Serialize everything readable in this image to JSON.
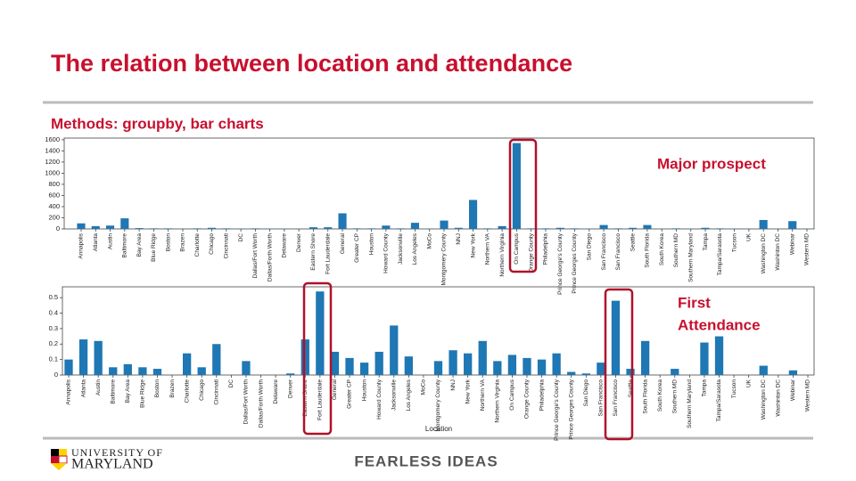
{
  "title": "The relation between location and attendance",
  "subtitle": "Methods: groupby, bar charts",
  "chart_data": [
    {
      "type": "bar",
      "color": "#1f77b4",
      "categories": [
        "Annapolis",
        "Atlanta",
        "Austin",
        "Baltimore",
        "Bay Area",
        "Blue Ridge",
        "Boston",
        "Brazen",
        "Charlotte",
        "Chicago",
        "Cincinnati",
        "DC",
        "Dallas/Fort Worth",
        "Dallas/Forth Worth",
        "Delaware",
        "Denver",
        "Eastern Shore",
        "Fort Lauderdale",
        "General",
        "Greater CP",
        "Houston",
        "Howard County",
        "Jacksonville",
        "Los Angeles",
        "MoCo",
        "Montgomery County",
        "NNJ",
        "New York",
        "Northern VA",
        "Northern Virginia",
        "On Campus",
        "Orange County",
        "Philadelphia",
        "Prince George's County",
        "Prince Georges County",
        "San Diego",
        "San Francisco",
        "San Francisco",
        "Seattle",
        "South Florida",
        "South Korea",
        "Southern MD",
        "Southern Maryland",
        "Tampa",
        "Tampa/Sarasota",
        "Tucson",
        "UK",
        "Washington DC",
        "Washinton DC",
        "Webinar",
        "Western MD"
      ],
      "values": [
        100,
        50,
        60,
        190,
        15,
        10,
        10,
        5,
        10,
        20,
        10,
        5,
        10,
        5,
        5,
        5,
        30,
        30,
        280,
        10,
        10,
        60,
        10,
        110,
        5,
        150,
        20,
        520,
        10,
        50,
        1540,
        10,
        10,
        20,
        10,
        5,
        70,
        10,
        20,
        70,
        5,
        10,
        5,
        20,
        10,
        5,
        5,
        160,
        5,
        140,
        5
      ],
      "ylim": [
        0,
        1630
      ],
      "yticks": [
        0,
        200,
        400,
        600,
        800,
        1000,
        1200,
        1400,
        1600
      ],
      "annotation": "Major prospect"
    },
    {
      "type": "bar",
      "color": "#1f77b4",
      "categories": [
        "Annapolis",
        "Atlanta",
        "Austin",
        "Baltimore",
        "Bay Area",
        "Blue Ridge",
        "Boston",
        "Brazen",
        "Charlotte",
        "Chicago",
        "Cincinnati",
        "DC",
        "Dallas/Fort Worth",
        "Dallas/Forth Worth",
        "Delaware",
        "Denver",
        "Eastern Shore",
        "Fort Lauderdale",
        "General",
        "Greater CP",
        "Houston",
        "Howard County",
        "Jacksonville",
        "Los Angeles",
        "MoCo",
        "Montgomery County",
        "NNJ",
        "New York",
        "Northern VA",
        "Northern Virginia",
        "On Campus",
        "Orange County",
        "Philadelphia",
        "Prince George's County",
        "Prince Georges County",
        "San Diego",
        "San Francisco",
        "San Francisco",
        "Seattle",
        "South Florida",
        "South Korea",
        "Southern MD",
        "Southern Maryland",
        "Tampa",
        "Tampa/Sarasota",
        "Tucson",
        "UK",
        "Washington DC",
        "Washinton DC",
        "Webinar",
        "Western MD"
      ],
      "values": [
        0.1,
        0.23,
        0.22,
        0.05,
        0.07,
        0.05,
        0.04,
        0,
        0.14,
        0.05,
        0.2,
        0,
        0.09,
        0,
        0,
        0.01,
        0.23,
        0.54,
        0.15,
        0.11,
        0.08,
        0.15,
        0.32,
        0.12,
        0,
        0.09,
        0.16,
        0.14,
        0.22,
        0.09,
        0.13,
        0.11,
        0.1,
        0.14,
        0.02,
        0.01,
        0.08,
        0.48,
        0.04,
        0.22,
        0,
        0.04,
        0,
        0.21,
        0.25,
        0,
        0,
        0.06,
        0,
        0.03,
        0
      ],
      "ylim": [
        0,
        0.57
      ],
      "yticks": [
        0.0,
        0.1,
        0.2,
        0.3,
        0.4,
        0.5
      ],
      "x_label": "Location",
      "annotation_lines": [
        "First",
        "Attendance"
      ]
    }
  ],
  "footer": {
    "logo_top": "UNIVERSITY OF",
    "logo_bottom": "MARYLAND",
    "tagline": "FEARLESS IDEAS"
  }
}
